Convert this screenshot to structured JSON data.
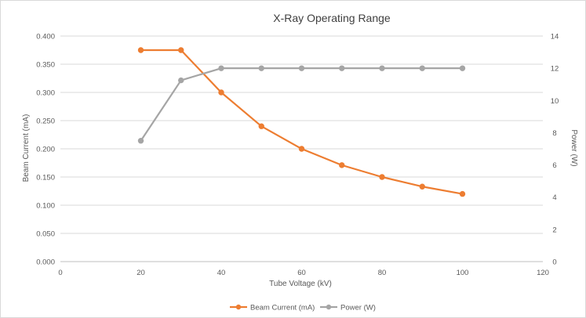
{
  "chart_data": {
    "type": "line",
    "title": "X-Ray  Operating Range",
    "xlabel": "Tube Voltage (kV)",
    "ylabel": "Beam Current (mA)",
    "y2label": "Power (W)",
    "xlim": [
      0,
      120
    ],
    "ylim": [
      0,
      0.4
    ],
    "y2lim": [
      0,
      14
    ],
    "x_ticks": [
      "0",
      "20",
      "40",
      "60",
      "80",
      "100",
      "120"
    ],
    "y_ticks": [
      "0.000",
      "0.050",
      "0.100",
      "0.150",
      "0.200",
      "0.250",
      "0.300",
      "0.350",
      "0.400"
    ],
    "y2_ticks": [
      "0",
      "2",
      "4",
      "6",
      "8",
      "10",
      "12",
      "14"
    ],
    "grid": true,
    "legend_position": "bottom",
    "x": [
      20,
      30,
      40,
      50,
      60,
      70,
      80,
      90,
      100
    ],
    "series": [
      {
        "name": "Beam Current (mA)",
        "axis": "left",
        "color": "#ED7D31",
        "values": [
          0.375,
          0.375,
          0.3,
          0.24,
          0.2,
          0.171,
          0.15,
          0.133,
          0.12
        ]
      },
      {
        "name": "Power (W)",
        "axis": "right",
        "color": "#A5A5A5",
        "values": [
          7.5,
          11.25,
          12,
          12,
          12,
          12,
          12,
          12,
          12
        ]
      }
    ]
  }
}
